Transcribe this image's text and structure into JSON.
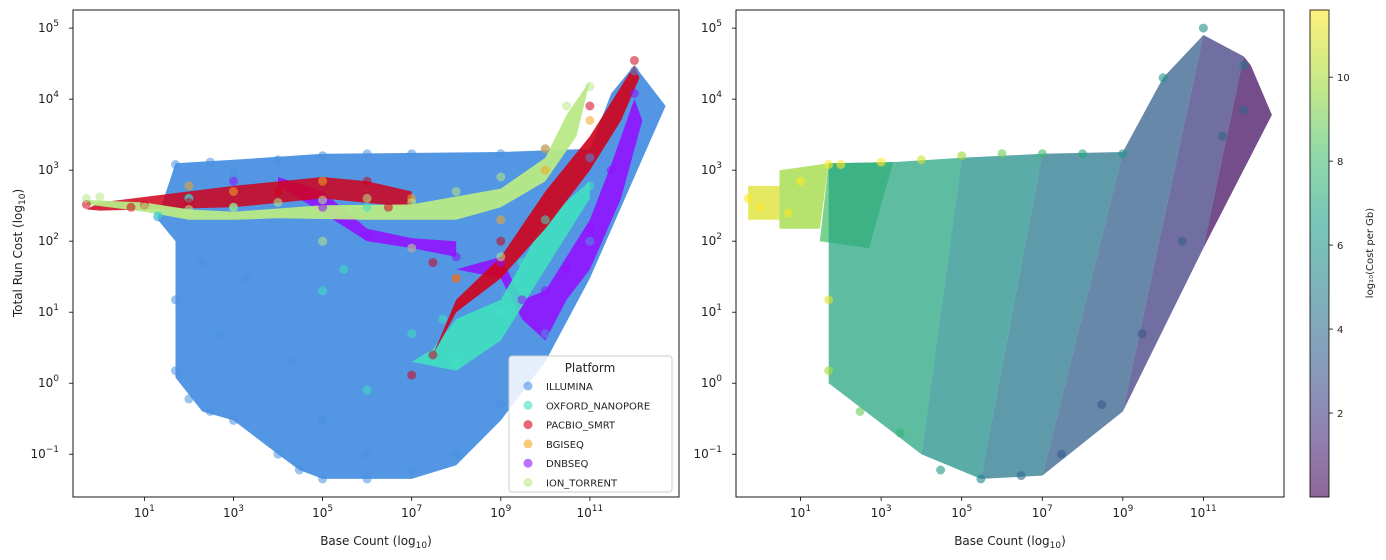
{
  "chart_data": [
    {
      "type": "scatter",
      "xlabel_main": "Base Count (log",
      "xlabel_sub": "10",
      "xlabel_end": ")",
      "ylabel_main": "Total Run Cost (log",
      "ylabel_sub": "10",
      "ylabel_end": ")",
      "xscale": "log",
      "yscale": "log",
      "xlim": [
        0.25,
        10000000000000.0
      ],
      "ylim": [
        0.025,
        180000
      ],
      "x_ticks": [
        10,
        1000,
        100000,
        10000000,
        1000000000,
        100000000000
      ],
      "x_tick_exponents": [
        "1",
        "3",
        "5",
        "7",
        "9",
        "11"
      ],
      "y_ticks": [
        0.1,
        1,
        10,
        100,
        1000,
        10000,
        100000
      ],
      "y_tick_exponents": [
        "−1",
        "0",
        "1",
        "2",
        "3",
        "4",
        "5"
      ],
      "legend": {
        "title": "Platform",
        "placement": "lower-right",
        "entries": [
          {
            "name": "ILLUMINA",
            "color": "#4a90e2"
          },
          {
            "name": "OXFORD_NANOPORE",
            "color": "#40e0c0"
          },
          {
            "name": "PACBIO_SMRT",
            "color": "#d0021b"
          },
          {
            "name": "BGISEQ",
            "color": "#f5a623"
          },
          {
            "name": "DNBSEQ",
            "color": "#9013fe"
          },
          {
            "name": "ION_TORRENT",
            "color": "#b8e986"
          }
        ]
      },
      "series": [
        {
          "name": "ILLUMINA",
          "color": "#4a90e2",
          "points": [
            [
              20,
              220
            ],
            [
              50,
              1200
            ],
            [
              100,
              400
            ],
            [
              300,
              1300
            ],
            [
              1000,
              900
            ],
            [
              10000,
              1400
            ],
            [
              100000,
              1600
            ],
            [
              1000000,
              1700
            ],
            [
              10000000,
              1700
            ],
            [
              1000000000,
              1700
            ],
            [
              100000000000,
              1500
            ],
            [
              1000000000000,
              25000
            ],
            [
              50,
              15
            ],
            [
              50,
              1.5
            ],
            [
              100,
              0.6
            ],
            [
              300,
              0.4
            ],
            [
              1000,
              0.3
            ],
            [
              10000,
              0.1
            ],
            [
              30000,
              0.06
            ],
            [
              100000,
              0.045
            ],
            [
              1000000,
              0.045
            ],
            [
              10000000,
              0.06
            ],
            [
              100000000,
              0.1
            ],
            [
              1000000000,
              0.5
            ],
            [
              10000000000,
              5
            ],
            [
              100000000000,
              100
            ],
            [
              200,
              50
            ],
            [
              500,
              5
            ],
            [
              2000,
              30
            ],
            [
              20000,
              2
            ],
            [
              100000,
              0.3
            ],
            [
              1000000,
              0.1
            ]
          ]
        },
        {
          "name": "OXFORD_NANOPORE",
          "color": "#40e0c0",
          "points": [
            [
              20,
              230
            ],
            [
              100,
              400
            ],
            [
              1000,
              300
            ],
            [
              100000,
              20
            ],
            [
              300000,
              40
            ],
            [
              1000000,
              0.8
            ],
            [
              10000000,
              5
            ],
            [
              100000000,
              2
            ],
            [
              1000000000,
              10
            ],
            [
              3000000000,
              50
            ],
            [
              10000000000,
              200
            ],
            [
              100000000000,
              600
            ],
            [
              1000000,
              300
            ],
            [
              50000000,
              8
            ]
          ]
        },
        {
          "name": "PACBIO_SMRT",
          "color": "#d0021b",
          "points": [
            [
              0.5,
              330
            ],
            [
              5,
              300
            ],
            [
              10,
              320
            ],
            [
              100,
              350
            ],
            [
              10000,
              500
            ],
            [
              1000000,
              700
            ],
            [
              10000000,
              1.3
            ],
            [
              30000000,
              2.5
            ],
            [
              100000000,
              30
            ],
            [
              1000000000,
              100
            ],
            [
              10000000000,
              2000
            ],
            [
              100000000000,
              8000
            ],
            [
              1000000000000,
              35000
            ],
            [
              3000000,
              300
            ],
            [
              30000000,
              50
            ]
          ]
        },
        {
          "name": "BGISEQ",
          "color": "#f5a623",
          "points": [
            [
              100,
              600
            ],
            [
              1000,
              500
            ],
            [
              100000,
              700
            ],
            [
              10000000,
              400
            ],
            [
              100000000,
              30
            ],
            [
              1000000000,
              200
            ],
            [
              10000000000,
              1000
            ],
            [
              100000000000,
              5000
            ]
          ]
        },
        {
          "name": "DNBSEQ",
          "color": "#9013fe",
          "points": [
            [
              1000,
              700
            ],
            [
              100000,
              300
            ],
            [
              1000000,
              120
            ],
            [
              10000000,
              80
            ],
            [
              100000000,
              60
            ],
            [
              1000000000,
              50
            ],
            [
              3000000000,
              15
            ],
            [
              10000000000,
              20
            ],
            [
              30000000000,
              40
            ],
            [
              100000000000,
              150
            ],
            [
              300000000000,
              1000
            ],
            [
              1000000000000,
              12000
            ]
          ]
        },
        {
          "name": "ION_TORRENT",
          "color": "#b8e986",
          "points": [
            [
              0.5,
              400
            ],
            [
              1,
              420
            ],
            [
              10,
              300
            ],
            [
              100,
              280
            ],
            [
              1000,
              300
            ],
            [
              10000,
              350
            ],
            [
              100000,
              380
            ],
            [
              1000000,
              400
            ],
            [
              10000000,
              350
            ],
            [
              100000000,
              500
            ],
            [
              1000000000,
              800
            ],
            [
              10000000000,
              2000
            ],
            [
              30000000000,
              8000
            ],
            [
              100000000000,
              15000
            ],
            [
              100000,
              100
            ],
            [
              10000000,
              80
            ],
            [
              1000000000,
              60
            ]
          ]
        }
      ]
    },
    {
      "type": "scatter",
      "xlabel_main": "Base Count (log",
      "xlabel_sub": "10",
      "xlabel_end": ")",
      "xscale": "log",
      "yscale": "log",
      "xlim": [
        0.25,
        10000000000000.0
      ],
      "ylim": [
        0.025,
        180000
      ],
      "x_ticks": [
        10,
        1000,
        100000,
        10000000,
        1000000000,
        100000000000
      ],
      "x_tick_exponents": [
        "1",
        "3",
        "5",
        "7",
        "9",
        "11"
      ],
      "y_ticks": [
        0.1,
        1,
        10,
        100,
        1000,
        10000,
        100000
      ],
      "y_tick_exponents": [
        "−1",
        "0",
        "1",
        "2",
        "3",
        "4",
        "5"
      ],
      "color_by": "log10(Cost per Gb)",
      "colorbar": {
        "label": "log₁₀(Cost per Gb)",
        "range": [
          0,
          11.6
        ],
        "ticks": [
          "2",
          "4",
          "6",
          "8",
          "10"
        ],
        "tick_values": [
          2,
          4,
          6,
          8,
          10
        ],
        "colormap": "viridis"
      },
      "points": [
        [
          0.5,
          400
        ],
        [
          1,
          300
        ],
        [
          5,
          250
        ],
        [
          10,
          700
        ],
        [
          50,
          1200
        ],
        [
          100,
          1200
        ],
        [
          1000,
          1300
        ],
        [
          10000,
          1400
        ],
        [
          100000,
          1600
        ],
        [
          1000000,
          1700
        ],
        [
          10000000,
          1700
        ],
        [
          100000000,
          1700
        ],
        [
          1000000000,
          1700
        ],
        [
          10000000000,
          20000
        ],
        [
          100000000000,
          100000
        ],
        [
          1000000000000,
          30000
        ],
        [
          50,
          15
        ],
        [
          50,
          1.5
        ],
        [
          300,
          0.4
        ],
        [
          3000,
          0.2
        ],
        [
          30000,
          0.06
        ],
        [
          300000,
          0.045
        ],
        [
          3000000,
          0.05
        ],
        [
          30000000,
          0.1
        ],
        [
          300000000,
          0.5
        ],
        [
          3000000000,
          5
        ],
        [
          30000000000,
          100
        ],
        [
          300000000000,
          3000
        ],
        [
          1000000000000,
          7000
        ]
      ]
    }
  ]
}
